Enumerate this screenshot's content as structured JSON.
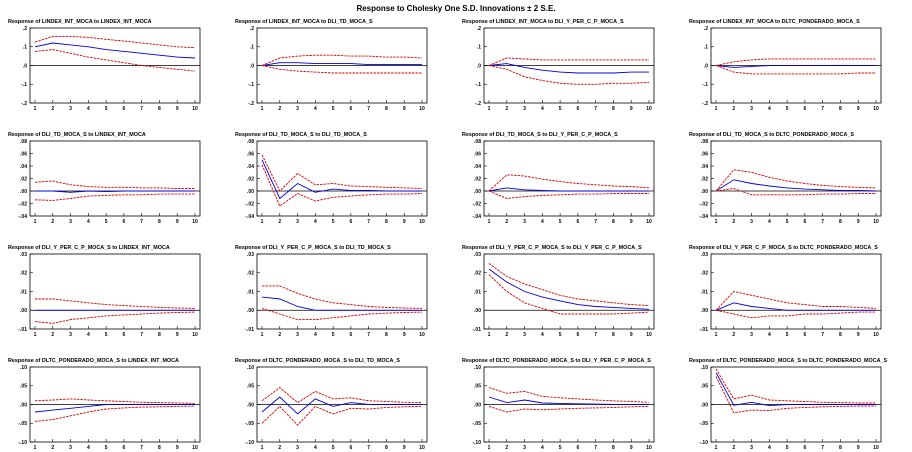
{
  "title": "Response to Cholesky One S.D. Innovations ± 2 S.E.",
  "colors": {
    "response": "#0000dd",
    "bands": "#dd0000",
    "zero": "#000000"
  },
  "chart_data": [
    {
      "type": "line",
      "title": "Response of LINDEX_INT_MOCA to LINDEX_INT_MOCA",
      "x": [
        1,
        2,
        3,
        4,
        5,
        6,
        7,
        8,
        9,
        10
      ],
      "ylim": [
        -0.2,
        0.2
      ],
      "yticks": [
        ".2",
        ".1",
        ".0",
        "-.1",
        "-.2"
      ],
      "series": [
        {
          "values": [
            0.1,
            0.12,
            0.11,
            0.1,
            0.085,
            0.075,
            0.065,
            0.055,
            0.045,
            0.04
          ]
        },
        {
          "values": [
            0.125,
            0.155,
            0.155,
            0.15,
            0.14,
            0.13,
            0.12,
            0.11,
            0.1,
            0.095
          ]
        },
        {
          "values": [
            0.075,
            0.085,
            0.065,
            0.045,
            0.03,
            0.015,
            0.0,
            -0.01,
            -0.02,
            -0.03
          ]
        }
      ]
    },
    {
      "type": "line",
      "title": "Response of LINDEX_INT_MOCA to DLI_TD_MOCA_S",
      "x": [
        1,
        2,
        3,
        4,
        5,
        6,
        7,
        8,
        9,
        10
      ],
      "ylim": [
        -0.2,
        0.2
      ],
      "yticks": [
        ".2",
        ".1",
        ".0",
        "-.1",
        "-.2"
      ],
      "series": [
        {
          "values": [
            0.0,
            0.015,
            0.015,
            0.01,
            0.01,
            0.01,
            0.005,
            0.005,
            0.005,
            0.005
          ]
        },
        {
          "values": [
            0.0,
            0.04,
            0.05,
            0.055,
            0.055,
            0.05,
            0.05,
            0.045,
            0.045,
            0.04
          ]
        },
        {
          "values": [
            0.0,
            -0.02,
            -0.03,
            -0.035,
            -0.04,
            -0.04,
            -0.04,
            -0.04,
            -0.04,
            -0.04
          ]
        }
      ]
    },
    {
      "type": "line",
      "title": "Response of LINDEX_INT_MOCA to DLI_Y_PER_C_P_MOCA_S",
      "x": [
        1,
        2,
        3,
        4,
        5,
        6,
        7,
        8,
        9,
        10
      ],
      "ylim": [
        -0.2,
        0.2
      ],
      "yticks": [
        ".2",
        ".1",
        ".0",
        "-.1",
        "-.2"
      ],
      "series": [
        {
          "values": [
            0.0,
            0.01,
            -0.01,
            -0.025,
            -0.035,
            -0.04,
            -0.04,
            -0.04,
            -0.035,
            -0.035
          ]
        },
        {
          "values": [
            0.0,
            0.04,
            0.035,
            0.03,
            0.03,
            0.03,
            0.03,
            0.03,
            0.03,
            0.03
          ]
        },
        {
          "values": [
            0.0,
            -0.02,
            -0.06,
            -0.08,
            -0.095,
            -0.1,
            -0.1,
            -0.095,
            -0.095,
            -0.09
          ]
        }
      ]
    },
    {
      "type": "line",
      "title": "Response of LINDEX_INT_MOCA to DLTC_PONDERADO_MOCA_S",
      "x": [
        1,
        2,
        3,
        4,
        5,
        6,
        7,
        8,
        9,
        10
      ],
      "ylim": [
        -0.2,
        0.2
      ],
      "yticks": [
        ".2",
        ".1",
        ".0",
        "-.1",
        "-.2"
      ],
      "series": [
        {
          "values": [
            0.0,
            -0.01,
            -0.005,
            0.0,
            0.0,
            0.0,
            0.0,
            0.0,
            0.0,
            0.0
          ]
        },
        {
          "values": [
            0.0,
            0.02,
            0.03,
            0.035,
            0.035,
            0.035,
            0.035,
            0.035,
            0.035,
            0.035
          ]
        },
        {
          "values": [
            0.0,
            -0.035,
            -0.045,
            -0.045,
            -0.045,
            -0.045,
            -0.045,
            -0.045,
            -0.04,
            -0.04
          ]
        }
      ]
    },
    {
      "type": "line",
      "title": "Response of DLI_TD_MOCA_S to LINDEX_INT_MOCA",
      "x": [
        1,
        2,
        3,
        4,
        5,
        6,
        7,
        8,
        9,
        10
      ],
      "ylim": [
        -0.04,
        0.08
      ],
      "yticks": [
        ".08",
        ".06",
        ".04",
        ".02",
        ".00",
        "-.02",
        "-.04"
      ],
      "series": [
        {
          "values": [
            0.0,
            0.0,
            -0.002,
            0.0,
            -0.001,
            0.0,
            0.0,
            0.0,
            0.0,
            0.0
          ]
        },
        {
          "values": [
            0.014,
            0.016,
            0.01,
            0.007,
            0.006,
            0.006,
            0.005,
            0.005,
            0.004,
            0.004
          ]
        },
        {
          "values": [
            -0.014,
            -0.015,
            -0.012,
            -0.008,
            -0.007,
            -0.006,
            -0.006,
            -0.005,
            -0.005,
            -0.005
          ]
        }
      ]
    },
    {
      "type": "line",
      "title": "Response of DLI_TD_MOCA_S to DLI_TD_MOCA_S",
      "x": [
        1,
        2,
        3,
        4,
        5,
        6,
        7,
        8,
        9,
        10
      ],
      "ylim": [
        -0.04,
        0.08
      ],
      "yticks": [
        ".08",
        ".06",
        ".04",
        ".02",
        ".00",
        "-.02",
        "-.04"
      ],
      "series": [
        {
          "values": [
            0.05,
            -0.012,
            0.012,
            -0.002,
            0.003,
            0.001,
            0.001,
            0.0,
            0.0,
            0.0
          ]
        },
        {
          "values": [
            0.058,
            0.0,
            0.028,
            0.01,
            0.012,
            0.008,
            0.007,
            0.006,
            0.005,
            0.004
          ]
        },
        {
          "values": [
            0.042,
            -0.024,
            -0.004,
            -0.016,
            -0.01,
            -0.008,
            -0.006,
            -0.005,
            -0.005,
            -0.004
          ]
        }
      ]
    },
    {
      "type": "line",
      "title": "Response of DLI_TD_MOCA_S to DLI_Y_PER_C_P_MOCA_S",
      "x": [
        1,
        2,
        3,
        4,
        5,
        6,
        7,
        8,
        9,
        10
      ],
      "ylim": [
        -0.04,
        0.08
      ],
      "yticks": [
        ".08",
        ".06",
        ".04",
        ".02",
        ".00",
        "-.02",
        "-.04"
      ],
      "series": [
        {
          "values": [
            0.0,
            0.005,
            0.002,
            0.001,
            0.0,
            0.0,
            0.0,
            0.0,
            0.0,
            0.0
          ]
        },
        {
          "values": [
            0.0,
            0.026,
            0.024,
            0.019,
            0.015,
            0.012,
            0.01,
            0.008,
            0.007,
            0.005
          ]
        },
        {
          "values": [
            0.0,
            -0.012,
            -0.009,
            -0.007,
            -0.006,
            -0.005,
            -0.005,
            -0.004,
            -0.004,
            -0.004
          ]
        }
      ]
    },
    {
      "type": "line",
      "title": "Response of DLI_TD_MOCA_S to DLTC_PONDERADO_MOCA_S",
      "x": [
        1,
        2,
        3,
        4,
        5,
        6,
        7,
        8,
        9,
        10
      ],
      "ylim": [
        -0.04,
        0.08
      ],
      "yticks": [
        ".08",
        ".06",
        ".04",
        ".02",
        ".00",
        "-.02",
        "-.04"
      ],
      "series": [
        {
          "values": [
            0.0,
            0.018,
            0.012,
            0.008,
            0.005,
            0.003,
            0.002,
            0.001,
            0.001,
            0.0
          ]
        },
        {
          "values": [
            0.0,
            0.034,
            0.03,
            0.022,
            0.016,
            0.012,
            0.009,
            0.007,
            0.006,
            0.005
          ]
        },
        {
          "values": [
            0.0,
            0.004,
            -0.006,
            -0.006,
            -0.006,
            -0.006,
            -0.005,
            -0.005,
            -0.004,
            -0.004
          ]
        }
      ]
    },
    {
      "type": "line",
      "title": "Response of DLI_Y_PER_C_P_MOCA_S to LINDEX_INT_MOCA",
      "x": [
        1,
        2,
        3,
        4,
        5,
        6,
        7,
        8,
        9,
        10
      ],
      "ylim": [
        -0.01,
        0.03
      ],
      "yticks": [
        ".03",
        ".02",
        ".01",
        ".00",
        "-.01"
      ],
      "series": [
        {
          "values": [
            0.0,
            0.0,
            0.0,
            0.0,
            0.0,
            0.0,
            0.0,
            0.0,
            0.0,
            0.0
          ]
        },
        {
          "values": [
            0.006,
            0.006,
            0.005,
            0.004,
            0.003,
            0.0025,
            0.002,
            0.0015,
            0.0012,
            0.001
          ]
        },
        {
          "values": [
            -0.006,
            -0.007,
            -0.005,
            -0.004,
            -0.003,
            -0.0025,
            -0.002,
            -0.0015,
            -0.0012,
            -0.001
          ]
        }
      ]
    },
    {
      "type": "line",
      "title": "Response of DLI_Y_PER_C_P_MOCA_S to DLI_TD_MOCA_S",
      "x": [
        1,
        2,
        3,
        4,
        5,
        6,
        7,
        8,
        9,
        10
      ],
      "ylim": [
        -0.01,
        0.03
      ],
      "yticks": [
        ".03",
        ".02",
        ".01",
        ".00",
        "-.01"
      ],
      "series": [
        {
          "values": [
            0.007,
            0.006,
            0.002,
            0.0,
            0.0,
            0.0,
            0.0,
            0.0,
            0.0,
            0.0
          ]
        },
        {
          "values": [
            0.013,
            0.013,
            0.009,
            0.006,
            0.004,
            0.003,
            0.002,
            0.0015,
            0.0012,
            0.001
          ]
        },
        {
          "values": [
            0.001,
            -0.002,
            -0.005,
            -0.005,
            -0.004,
            -0.003,
            -0.002,
            -0.0015,
            -0.0012,
            -0.001
          ]
        }
      ]
    },
    {
      "type": "line",
      "title": "Response of DLI_Y_PER_C_P_MOCA_S to DLI_Y_PER_C_P_MOCA_S",
      "x": [
        1,
        2,
        3,
        4,
        5,
        6,
        7,
        8,
        9,
        10
      ],
      "ylim": [
        -0.01,
        0.03
      ],
      "yticks": [
        ".03",
        ".02",
        ".01",
        ".00",
        "-.01"
      ],
      "series": [
        {
          "values": [
            0.022,
            0.015,
            0.01,
            0.007,
            0.005,
            0.003,
            0.002,
            0.0015,
            0.001,
            0.0005
          ]
        },
        {
          "values": [
            0.025,
            0.018,
            0.014,
            0.011,
            0.008,
            0.006,
            0.005,
            0.004,
            0.003,
            0.0025
          ]
        },
        {
          "values": [
            0.019,
            0.01,
            0.004,
            0.001,
            -0.002,
            -0.002,
            -0.002,
            -0.002,
            -0.0015,
            -0.001
          ]
        }
      ]
    },
    {
      "type": "line",
      "title": "Response of DLI_Y_PER_C_P_MOCA_S to DLTC_PONDERADO_MOCA_S",
      "x": [
        1,
        2,
        3,
        4,
        5,
        6,
        7,
        8,
        9,
        10
      ],
      "ylim": [
        -0.01,
        0.03
      ],
      "yticks": [
        ".03",
        ".02",
        ".01",
        ".00",
        "-.01"
      ],
      "series": [
        {
          "values": [
            0.0,
            0.004,
            0.002,
            0.001,
            0.0,
            0.0,
            0.0,
            0.0,
            0.0,
            0.0
          ]
        },
        {
          "values": [
            0.0,
            0.01,
            0.008,
            0.006,
            0.004,
            0.003,
            0.002,
            0.002,
            0.0015,
            0.001
          ]
        },
        {
          "values": [
            0.0,
            -0.002,
            -0.004,
            -0.003,
            -0.003,
            -0.002,
            -0.002,
            -0.0015,
            -0.001,
            -0.001
          ]
        }
      ]
    },
    {
      "type": "line",
      "title": "Response of DLTC_PONDERADO_MOCA_S to LINDEX_INT_MOCA",
      "x": [
        1,
        2,
        3,
        4,
        5,
        6,
        7,
        8,
        9,
        10
      ],
      "ylim": [
        -0.1,
        0.1
      ],
      "yticks": [
        ".10",
        ".05",
        ".00",
        "-.05",
        "-.10"
      ],
      "series": [
        {
          "values": [
            -0.02,
            -0.015,
            -0.01,
            -0.005,
            0.0,
            0.0,
            0.0,
            0.0,
            0.0,
            0.0
          ]
        },
        {
          "values": [
            0.01,
            0.012,
            0.015,
            0.012,
            0.01,
            0.008,
            0.006,
            0.005,
            0.004,
            0.003
          ]
        },
        {
          "values": [
            -0.045,
            -0.04,
            -0.03,
            -0.02,
            -0.012,
            -0.009,
            -0.007,
            -0.006,
            -0.005,
            -0.004
          ]
        }
      ]
    },
    {
      "type": "line",
      "title": "Response of DLTC_PONDERADO_MOCA_S to DLI_TD_MOCA_S",
      "x": [
        1,
        2,
        3,
        4,
        5,
        6,
        7,
        8,
        9,
        10
      ],
      "ylim": [
        -0.1,
        0.1
      ],
      "yticks": [
        ".10",
        ".05",
        ".00",
        "-.05",
        "-.10"
      ],
      "series": [
        {
          "values": [
            -0.02,
            0.02,
            -0.025,
            0.015,
            -0.005,
            0.005,
            0.0,
            0.0,
            0.0,
            0.0
          ]
        },
        {
          "values": [
            0.01,
            0.045,
            0.005,
            0.035,
            0.015,
            0.018,
            0.01,
            0.008,
            0.006,
            0.005
          ]
        },
        {
          "values": [
            -0.05,
            -0.005,
            -0.055,
            -0.005,
            -0.025,
            -0.01,
            -0.012,
            -0.008,
            -0.006,
            -0.005
          ]
        }
      ]
    },
    {
      "type": "line",
      "title": "Response of DLTC_PONDERADO_MOCA_S to DLI_Y_PER_C_P_MOCA_S",
      "x": [
        1,
        2,
        3,
        4,
        5,
        6,
        7,
        8,
        9,
        10
      ],
      "ylim": [
        -0.1,
        0.1
      ],
      "yticks": [
        ".10",
        ".05",
        ".00",
        "-.05",
        "-.10"
      ],
      "series": [
        {
          "values": [
            0.02,
            0.005,
            0.012,
            0.004,
            0.003,
            0.002,
            0.001,
            0.0,
            0.0,
            0.0
          ]
        },
        {
          "values": [
            0.045,
            0.03,
            0.035,
            0.022,
            0.018,
            0.015,
            0.012,
            0.01,
            0.008,
            0.006
          ]
        },
        {
          "values": [
            -0.005,
            -0.02,
            -0.012,
            -0.014,
            -0.012,
            -0.01,
            -0.009,
            -0.008,
            -0.006,
            -0.005
          ]
        }
      ]
    },
    {
      "type": "line",
      "title": "Response of DLTC_PONDERADO_MOCA_S to DLTC_PONDERADO_MOCA_S",
      "x": [
        1,
        2,
        3,
        4,
        5,
        6,
        7,
        8,
        9,
        10
      ],
      "ylim": [
        -0.1,
        0.1
      ],
      "yticks": [
        ".10",
        ".05",
        ".00",
        "-.05",
        "-.10"
      ],
      "series": [
        {
          "values": [
            0.085,
            -0.002,
            0.006,
            -0.003,
            0.0,
            0.0,
            0.0,
            0.0,
            0.0,
            0.0
          ]
        },
        {
          "values": [
            0.095,
            0.015,
            0.025,
            0.012,
            0.01,
            0.008,
            0.006,
            0.005,
            0.004,
            0.004
          ]
        },
        {
          "values": [
            0.075,
            -0.022,
            -0.015,
            -0.016,
            -0.01,
            -0.008,
            -0.006,
            -0.005,
            -0.004,
            -0.004
          ]
        }
      ]
    }
  ]
}
